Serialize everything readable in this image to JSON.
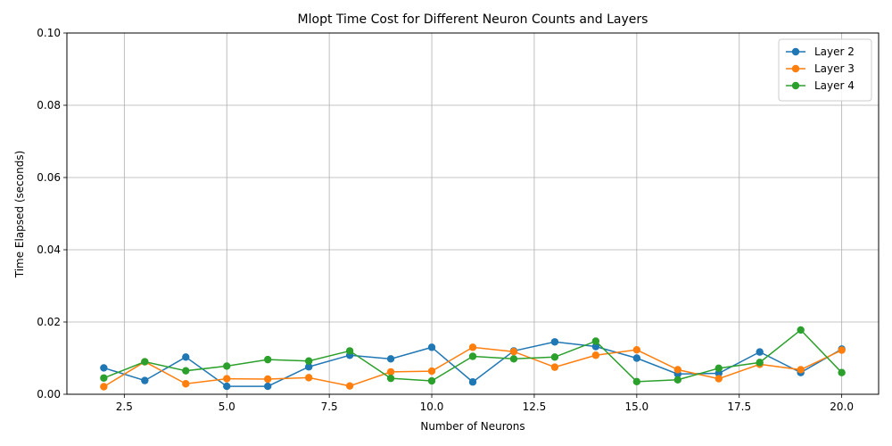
{
  "chart_data": {
    "type": "line",
    "title": "Mlopt Time Cost for Different Neuron Counts and Layers",
    "xlabel": "Number of Neurons",
    "ylabel": "Time Elapsed (seconds)",
    "xlim": [
      1.1,
      20.9
    ],
    "ylim": [
      0,
      0.1
    ],
    "xticks": [
      2.5,
      5.0,
      7.5,
      10.0,
      12.5,
      15.0,
      17.5,
      20.0
    ],
    "xtick_labels": [
      "2.5",
      "5.0",
      "7.5",
      "10.0",
      "12.5",
      "15.0",
      "17.5",
      "20.0"
    ],
    "yticks": [
      0,
      0.02,
      0.04,
      0.06,
      0.08,
      0.1
    ],
    "ytick_labels": [
      "0.00",
      "0.02",
      "0.04",
      "0.06",
      "0.08",
      "0.10"
    ],
    "grid": true,
    "legend_position": "top-right",
    "x": [
      2,
      3,
      4,
      5,
      6,
      7,
      8,
      9,
      10,
      11,
      12,
      13,
      14,
      15,
      16,
      17,
      18,
      19,
      20
    ],
    "series": [
      {
        "name": "Layer 2",
        "color": "#1f77b4",
        "values": [
          0.0073,
          0.0038,
          0.0103,
          0.0022,
          0.0022,
          0.0076,
          0.0108,
          0.0098,
          0.013,
          0.0034,
          0.012,
          0.0145,
          0.0132,
          0.01,
          0.0056,
          0.0058,
          0.0117,
          0.006,
          0.0125
        ]
      },
      {
        "name": "Layer 3",
        "color": "#ff7f0e",
        "values": [
          0.0021,
          0.009,
          0.0029,
          0.0043,
          0.0042,
          0.0046,
          0.0023,
          0.0062,
          0.0064,
          0.013,
          0.0118,
          0.0075,
          0.0108,
          0.0123,
          0.0068,
          0.0043,
          0.0083,
          0.0068,
          0.0122
        ]
      },
      {
        "name": "Layer 4",
        "color": "#2ca02c",
        "values": [
          0.0045,
          0.009,
          0.0065,
          0.0078,
          0.0096,
          0.0092,
          0.012,
          0.0044,
          0.0037,
          0.0105,
          0.0098,
          0.0103,
          0.0147,
          0.0035,
          0.004,
          0.0072,
          0.0088,
          0.0178,
          0.006
        ]
      }
    ]
  }
}
